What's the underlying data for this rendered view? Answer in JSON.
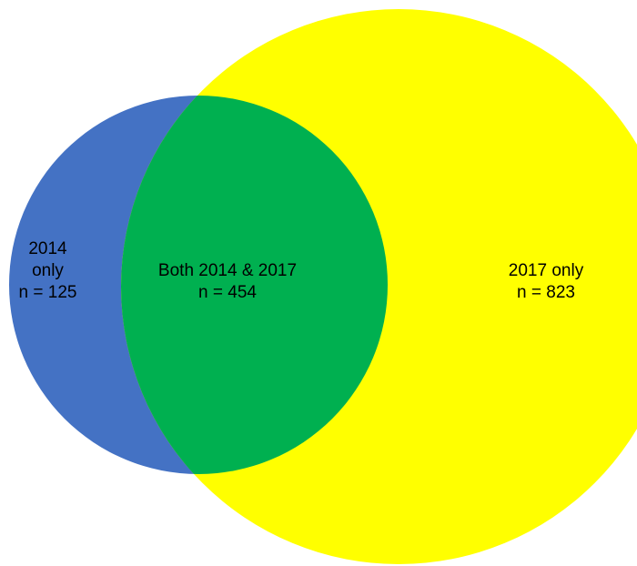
{
  "colors": {
    "only_2014": "#4472C4",
    "only_2017": "#FFFF00",
    "both": "#00B050",
    "text": "#000000"
  },
  "regions": {
    "only_2014": {
      "line1": "2014",
      "line2": "only",
      "count": "n = 125"
    },
    "both": {
      "line1": "Both 2014 & 2017",
      "count": "n = 454"
    },
    "only_2017": {
      "line1": "2017 only",
      "count": "n = 823"
    }
  }
}
